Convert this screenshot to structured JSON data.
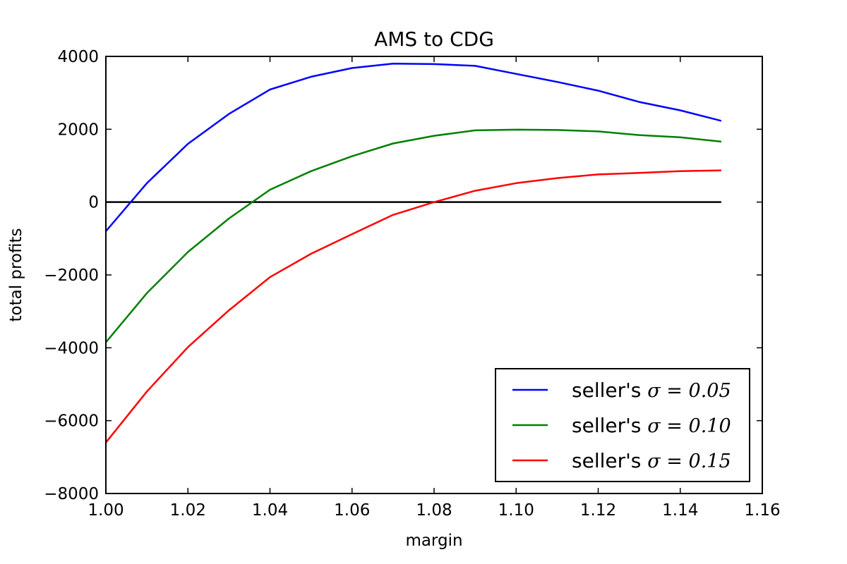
{
  "chart_data": {
    "type": "line",
    "title": "AMS to CDG",
    "xlabel": "margin",
    "ylabel": "total profits",
    "xlim": [
      1.0,
      1.16
    ],
    "ylim": [
      -8000,
      4000
    ],
    "xticks": [
      "1.00",
      "1.02",
      "1.04",
      "1.06",
      "1.08",
      "1.10",
      "1.12",
      "1.14",
      "1.16"
    ],
    "yticks": [
      "−8000",
      "−6000",
      "−4000",
      "−2000",
      "0",
      "2000",
      "4000"
    ],
    "grid": false,
    "legend_position": "lower-right",
    "reference_line": {
      "y": 0,
      "x_range": [
        1.0,
        1.15
      ],
      "color": "#000000"
    },
    "x": [
      1.0,
      1.01,
      1.02,
      1.03,
      1.04,
      1.05,
      1.06,
      1.07,
      1.08,
      1.09,
      1.1,
      1.11,
      1.12,
      1.13,
      1.14,
      1.15
    ],
    "series": [
      {
        "name_prefix": "seller's ",
        "name_math": "σ = 0.05",
        "color": "#0000ff",
        "values": [
          -800,
          520,
          1600,
          2420,
          3090,
          3440,
          3680,
          3800,
          3790,
          3740,
          3520,
          3300,
          3060,
          2750,
          2520,
          2230
        ]
      },
      {
        "name_prefix": "seller's ",
        "name_math": "σ = 0.10",
        "color": "#008000",
        "values": [
          -3850,
          -2500,
          -1370,
          -450,
          340,
          850,
          1260,
          1610,
          1820,
          1970,
          1990,
          1980,
          1940,
          1840,
          1780,
          1660
        ]
      },
      {
        "name_prefix": "seller's ",
        "name_math": "σ = 0.15",
        "color": "#ff0000",
        "values": [
          -6600,
          -5200,
          -3980,
          -2970,
          -2060,
          -1420,
          -880,
          -350,
          0,
          310,
          520,
          660,
          760,
          800,
          850,
          870
        ]
      }
    ]
  }
}
